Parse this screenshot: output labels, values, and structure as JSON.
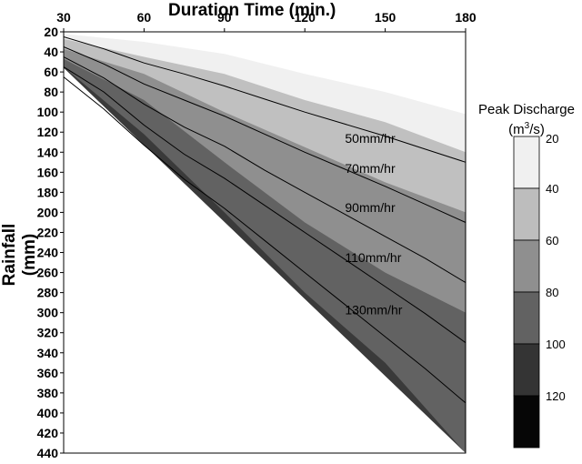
{
  "chart_data": {
    "type": "contour",
    "xlabel": "Duration Time (min.)",
    "ylabel": "Rainfall (mm)",
    "xlim": [
      30,
      180
    ],
    "ylim": [
      20,
      440
    ],
    "y_inverted": true,
    "x_ticks": [
      "30",
      "60",
      "90",
      "120",
      "150",
      "180"
    ],
    "y_ticks": [
      "20",
      "40",
      "60",
      "80",
      "100",
      "120",
      "140",
      "160",
      "180",
      "200",
      "220",
      "240",
      "260",
      "280",
      "300",
      "320",
      "340",
      "360",
      "380",
      "400",
      "420",
      "440"
    ],
    "legend": {
      "title": "Peak Discharge",
      "unit_prefix": "(m",
      "unit_sup": "3",
      "unit_suffix": "/s)",
      "levels": [
        "20",
        "40",
        "60",
        "80",
        "100",
        "120"
      ],
      "colors": [
        "#f0f0f0",
        "#bdbdbd",
        "#8f8f8f",
        "#626262",
        "#343434",
        "#060606"
      ]
    },
    "intensity_lines": [
      {
        "label": "50mm/hr",
        "points": [
          [
            30,
            25
          ],
          [
            45,
            37
          ],
          [
            60,
            51
          ],
          [
            75,
            62
          ],
          [
            90,
            74
          ],
          [
            105,
            87
          ],
          [
            120,
            100
          ],
          [
            135,
            112
          ],
          [
            150,
            124
          ],
          [
            165,
            137
          ],
          [
            180,
            150
          ]
        ]
      },
      {
        "label": "70mm/hr",
        "points": [
          [
            30,
            35
          ],
          [
            45,
            52
          ],
          [
            60,
            72
          ],
          [
            75,
            88
          ],
          [
            90,
            104
          ],
          [
            105,
            122
          ],
          [
            120,
            140
          ],
          [
            135,
            157
          ],
          [
            150,
            174
          ],
          [
            165,
            192
          ],
          [
            180,
            210
          ]
        ]
      },
      {
        "label": "90mm/hr",
        "points": [
          [
            30,
            45
          ],
          [
            45,
            66
          ],
          [
            60,
            92
          ],
          [
            75,
            115
          ],
          [
            90,
            134
          ],
          [
            105,
            158
          ],
          [
            120,
            180
          ],
          [
            135,
            202
          ],
          [
            150,
            224
          ],
          [
            165,
            246
          ],
          [
            180,
            270
          ]
        ]
      },
      {
        "label": "110mm/hr",
        "points": [
          [
            30,
            55
          ],
          [
            45,
            80
          ],
          [
            60,
            113
          ],
          [
            75,
            142
          ],
          [
            90,
            166
          ],
          [
            105,
            193
          ],
          [
            120,
            220
          ],
          [
            135,
            247
          ],
          [
            150,
            274
          ],
          [
            165,
            301
          ],
          [
            180,
            330
          ]
        ]
      },
      {
        "label": "130mm/hr",
        "points": [
          [
            30,
            65
          ],
          [
            45,
            97
          ],
          [
            60,
            133
          ],
          [
            75,
            167
          ],
          [
            90,
            196
          ],
          [
            105,
            228
          ],
          [
            120,
            260
          ],
          [
            135,
            292
          ],
          [
            150,
            324
          ],
          [
            165,
            356
          ],
          [
            180,
            390
          ]
        ]
      }
    ],
    "filled_regions": [
      {
        "level": "20-40",
        "top": [
          [
            30,
            22
          ],
          [
            60,
            30
          ],
          [
            90,
            42
          ],
          [
            120,
            62
          ],
          [
            150,
            80
          ],
          [
            180,
            102
          ]
        ]
      },
      {
        "level": "40-60",
        "top": [
          [
            30,
            27
          ],
          [
            60,
            45
          ],
          [
            90,
            62
          ],
          [
            120,
            88
          ],
          [
            150,
            110
          ],
          [
            180,
            140
          ]
        ]
      },
      {
        "level": "60-80",
        "top": [
          [
            30,
            37
          ],
          [
            60,
            62
          ],
          [
            90,
            100
          ],
          [
            120,
            135
          ],
          [
            150,
            170
          ],
          [
            180,
            200
          ]
        ]
      },
      {
        "level": "80-100",
        "top": [
          [
            30,
            47
          ],
          [
            60,
            88
          ],
          [
            90,
            150
          ],
          [
            120,
            210
          ],
          [
            150,
            260
          ],
          [
            180,
            300
          ]
        ]
      },
      {
        "level": "100-120",
        "top": [
          [
            30,
            55
          ],
          [
            60,
            122
          ],
          [
            90,
            200
          ],
          [
            120,
            280
          ],
          [
            150,
            350
          ],
          [
            180,
            440
          ]
        ]
      }
    ]
  }
}
